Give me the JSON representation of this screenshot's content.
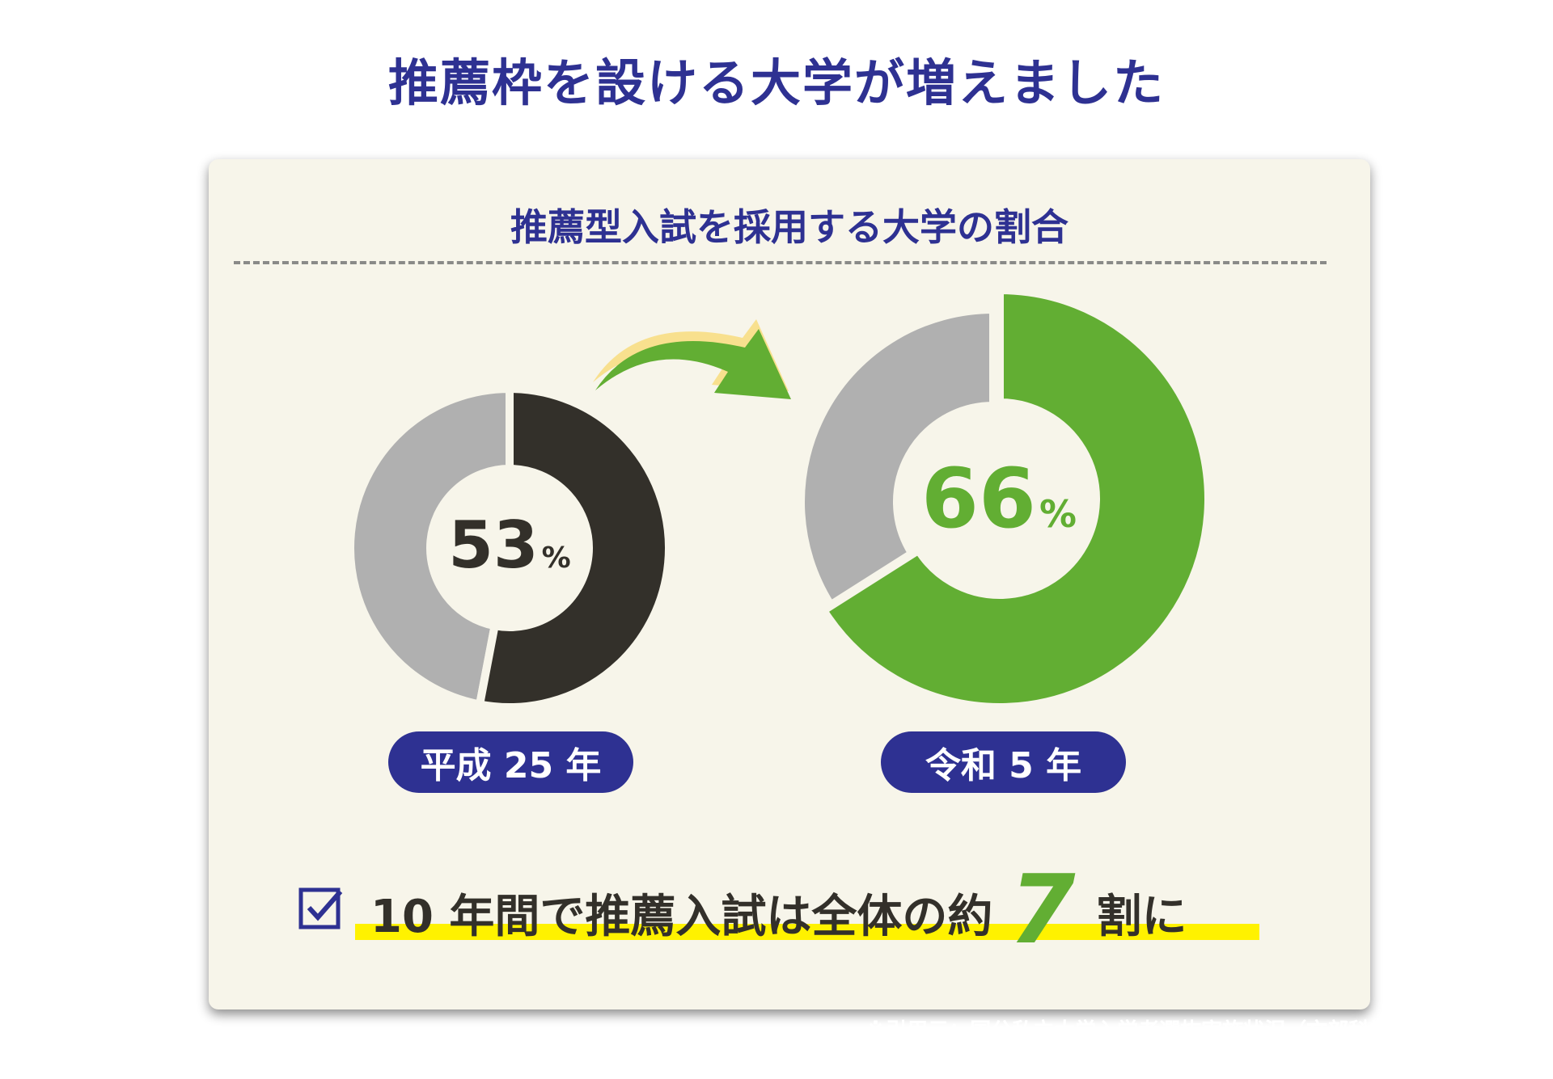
{
  "title": "推薦枠を設ける大学が増えました",
  "card": {
    "subtitle": "推薦型入試を採用する大学の割合",
    "summary": {
      "prefix": "10 年間で推薦入試は全体の約",
      "highlight_number": "7",
      "suffix": "割に"
    },
    "source_note": "※引用元：国公私立大学入学者選抜実施状況（文部科学省）"
  },
  "colors": {
    "navy": "#2e3192",
    "dark": "#33302a",
    "gray": "#b0b0b0",
    "green": "#62ae33",
    "background": "#f7f5ea",
    "highlight": "#fff200",
    "arrow_shadow": "#f8e08e"
  },
  "chart_data": {
    "type": "donut",
    "title": "推薦型入試を採用する大学の割合",
    "charts": [
      {
        "label": "平成 25 年",
        "value": 53,
        "value_text": "53",
        "unit": "%",
        "color": "#33302a",
        "remainder_color": "#b0b0b0"
      },
      {
        "label": "令和 5 年",
        "value": 66,
        "value_text": "66",
        "unit": "%",
        "color": "#62ae33",
        "remainder_color": "#b0b0b0"
      }
    ]
  }
}
